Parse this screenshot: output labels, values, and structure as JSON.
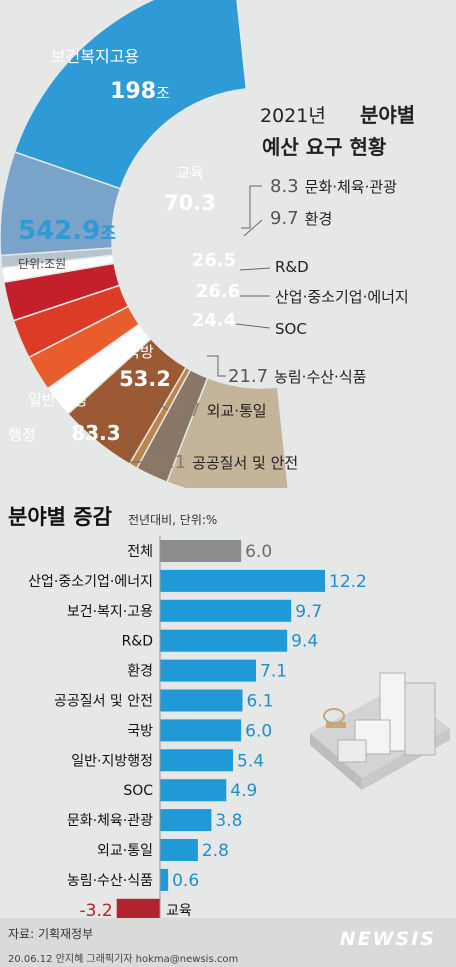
{
  "chart_data": [
    {
      "type": "pie",
      "title": "2021년 분야별",
      "subtitle": "예산 요구 현황",
      "total_value": "542.9",
      "total_unit": "조",
      "unit_note": "단위:조원",
      "slices": [
        {
          "label": "보건복지고용",
          "value": 198,
          "value_text": "198",
          "unit": "조",
          "color": "#2f9bd6"
        },
        {
          "label": "교육",
          "value": 70.3,
          "value_text": "70.3",
          "color": "#7aa3c9"
        },
        {
          "label": "문화·체육·관광",
          "value": 8.3,
          "value_text": "8.3",
          "color": "#b7c3cd"
        },
        {
          "label": "환경",
          "value": 9.7,
          "value_text": "9.7",
          "color": "#ffffff"
        },
        {
          "label": "R&D",
          "value": 26.5,
          "value_text": "26.5",
          "color": "#c3202b"
        },
        {
          "label": "산업·중소기업·에너지",
          "value": 26.6,
          "value_text": "26.6",
          "color": "#dc3b25"
        },
        {
          "label": "SOC",
          "value": 24.4,
          "value_text": "24.4",
          "color": "#e95c2c"
        },
        {
          "label": "농림·수산·식품",
          "value": 21.7,
          "value_text": "21.7",
          "color": "#ffffff"
        },
        {
          "label": "국방",
          "value": 53.2,
          "value_text": "53.2",
          "color": "#9b5a34"
        },
        {
          "label": "외교·통일",
          "value": 5.7,
          "value_text": "5.7",
          "color": "#b8864e"
        },
        {
          "label": "공공질서 및 안전",
          "value": 22.1,
          "value_text": "22.1",
          "color": "#8a7667"
        },
        {
          "label": "일반·지방행정",
          "value": 83.3,
          "value_text": "83.3",
          "color": "#c4b49a"
        }
      ]
    },
    {
      "type": "bar",
      "title": "분야별 증감",
      "subtitle": "전년대비, 단위:%",
      "categories": [
        "전체",
        "산업·중소기업·에너지",
        "보건·복지·고용",
        "R&D",
        "환경",
        "공공질서 및 안전",
        "국방",
        "일반·지방행정",
        "SOC",
        "문화·체육·관광",
        "외교·통일",
        "농림·수산·식품",
        "교육"
      ],
      "values": [
        6.0,
        12.2,
        9.7,
        9.4,
        7.1,
        6.1,
        6.0,
        5.4,
        4.9,
        3.8,
        2.8,
        0.6,
        -3.2
      ],
      "value_labels": [
        "6.0",
        "12.2",
        "9.7",
        "9.4",
        "7.1",
        "6.1",
        "6.0",
        "5.4",
        "4.9",
        "3.8",
        "2.8",
        "0.6",
        "-3.2"
      ],
      "colors": {
        "total": "#8c8c8c",
        "positive": "#1f9ad6",
        "negative": "#b3232d"
      },
      "xlim": [
        -3.5,
        12.5
      ]
    }
  ],
  "footer": {
    "source": "자료: 기획재정부",
    "credit": "20.06.12 안지혜 그래픽기자 hokma@newsis.com",
    "logo": "NEWSIS"
  }
}
